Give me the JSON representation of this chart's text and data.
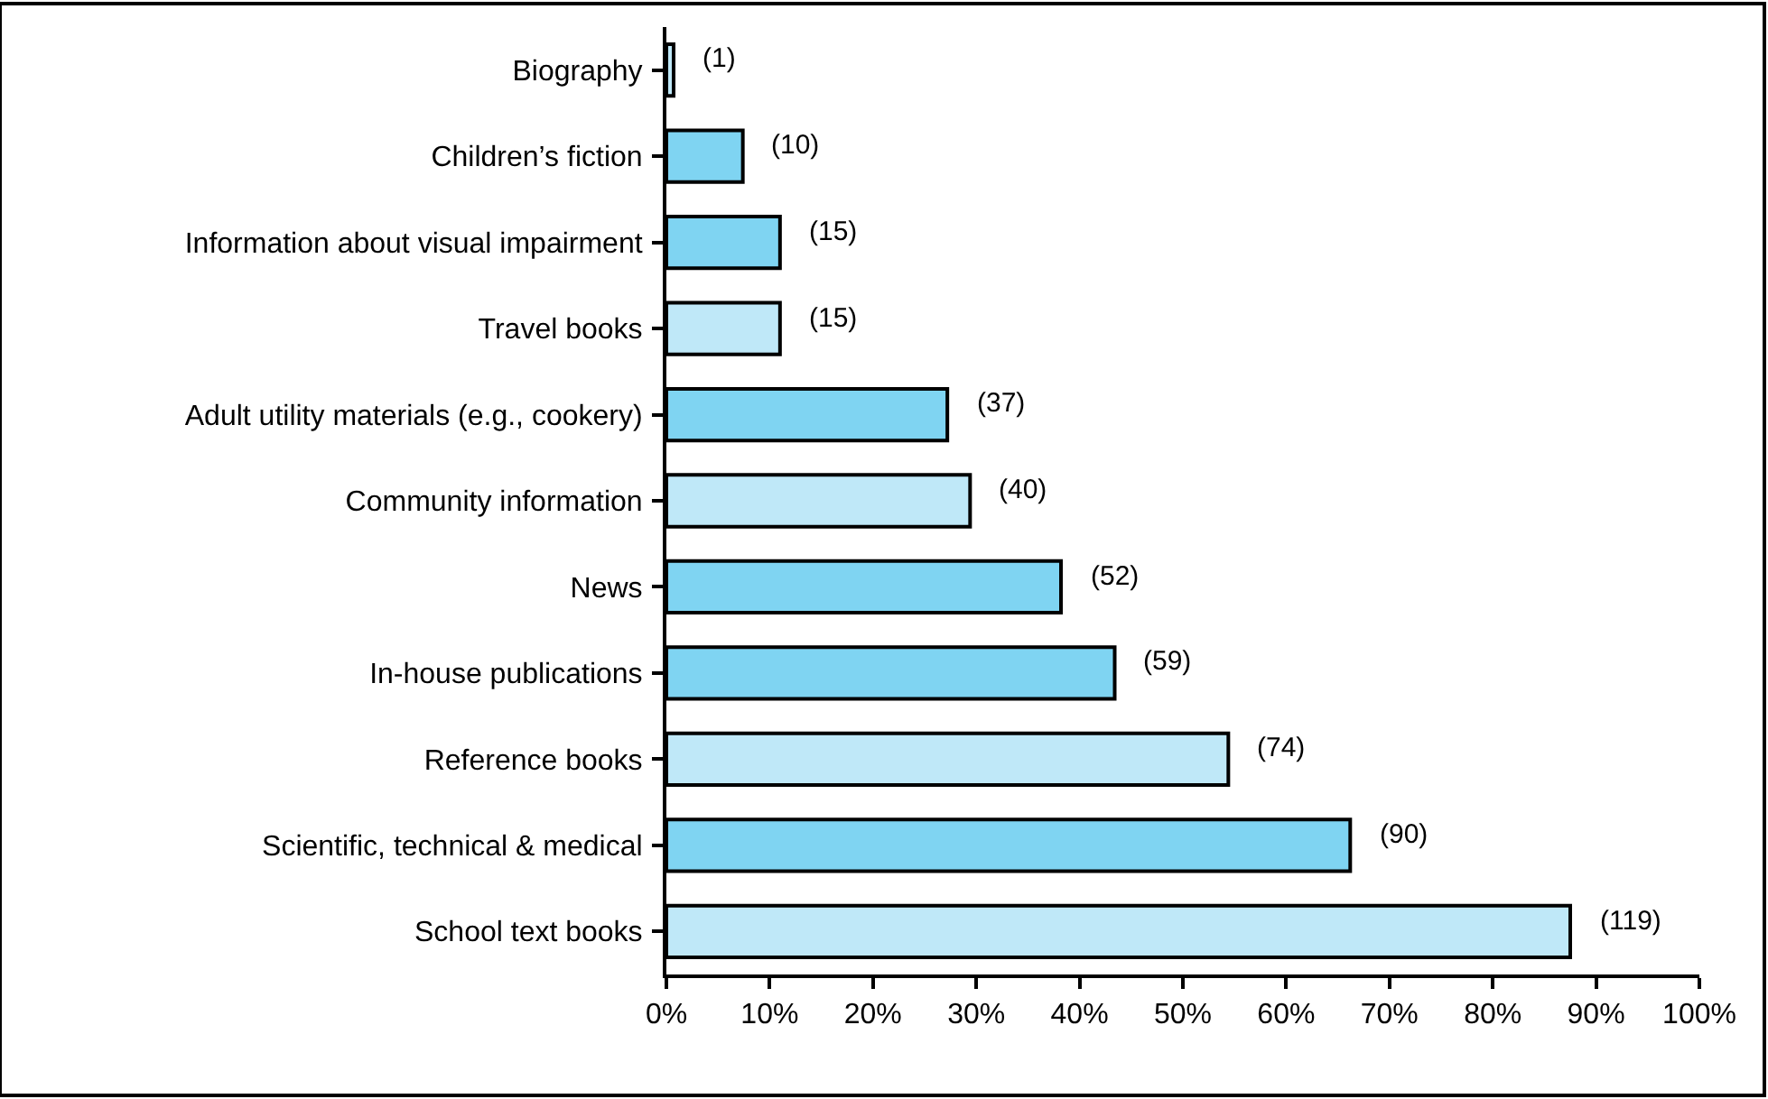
{
  "chart_data": {
    "type": "bar",
    "orientation": "horizontal",
    "categories": [
      "Biography",
      "Children’s fiction",
      "Information about visual impairment",
      "Travel books",
      "Adult utility materials (e.g., cookery)",
      "Community information",
      "News",
      "In-house publications",
      "Reference books",
      "Scientific, technical & medical",
      "School text books"
    ],
    "values": [
      0.7,
      7.4,
      11,
      11,
      27.2,
      29.4,
      38.2,
      43.4,
      54.4,
      66.2,
      87.5
    ],
    "colors": [
      "#bfe8f8",
      "#7fd4f2",
      "#7fd4f2",
      "#bfe8f8",
      "#7fd4f2",
      "#bfe8f8",
      "#7fd4f2",
      "#7fd4f2",
      "#bfe8f8",
      "#7fd4f2",
      "#bfe8f8"
    ],
    "annotations": [
      {
        "text": "(1)",
        "x": 0.7,
        "y": "Biography"
      },
      {
        "text": "(10)",
        "x": 7.4,
        "y": "Children’s fiction"
      },
      {
        "text": "(15)",
        "x": 11,
        "y": "Information about visual impairment"
      },
      {
        "text": "(15)",
        "x": 11,
        "y": "Travel books"
      },
      {
        "text": "(37)",
        "x": 27.2,
        "y": "Adult utility materials (e.g., cookery)"
      },
      {
        "text": "(40)",
        "x": 29.4,
        "y": "Community information"
      },
      {
        "text": "(52)",
        "x": 38.2,
        "y": "News"
      },
      {
        "text": "(59)",
        "x": 43.4,
        "y": "In-house publications"
      },
      {
        "text": "(74)",
        "x": 54.4,
        "y": "Reference books"
      },
      {
        "text": "(90)",
        "x": 66.2,
        "y": "Scientific, technical & medical"
      },
      {
        "text": "(119)",
        "x": 87.5,
        "y": "School text books"
      }
    ],
    "xlim": [
      0,
      100
    ],
    "xticks": [
      {
        "value": 0,
        "label": "0%"
      },
      {
        "value": 10,
        "label": "10%"
      },
      {
        "value": 20,
        "label": "20%"
      },
      {
        "value": 30,
        "label": "30%"
      },
      {
        "value": 40,
        "label": "40%"
      },
      {
        "value": 50,
        "label": "50%"
      },
      {
        "value": 60,
        "label": "60%"
      },
      {
        "value": 70,
        "label": "70%"
      },
      {
        "value": 80,
        "label": "80%"
      },
      {
        "value": 90,
        "label": "90%"
      },
      {
        "value": 100,
        "label": "100%"
      }
    ]
  }
}
